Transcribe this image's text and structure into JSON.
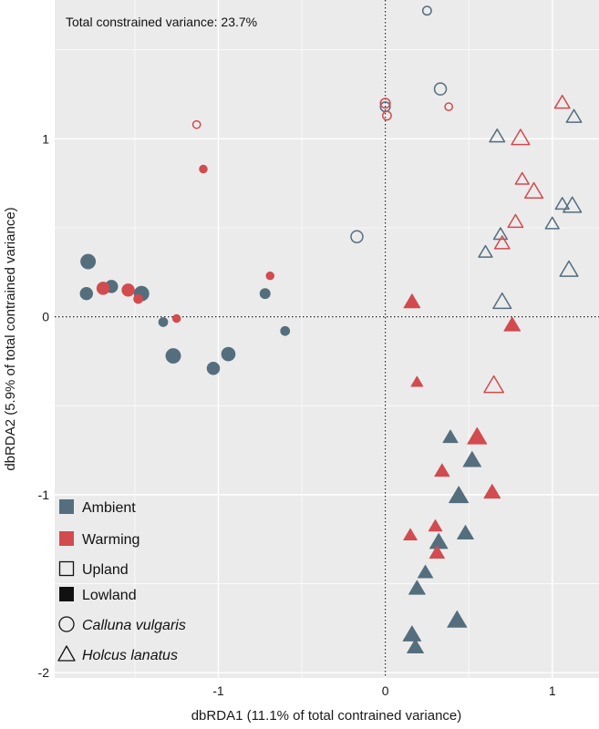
{
  "chart_data": {
    "type": "scatter",
    "title": "",
    "annotation": "Total constrained variance: 23.7%",
    "xlabel": "dbRDA1 (11.1% of total contrained variance)",
    "ylabel": "dbRDA2 (5.9% of total contrained variance)",
    "xlim": [
      -1.98,
      1.28
    ],
    "ylim": [
      -2.03,
      1.78
    ],
    "xticks": [
      -1,
      0,
      1
    ],
    "xtick_labels": [
      "-1",
      "0",
      "1"
    ],
    "yticks": [
      -2,
      -1,
      0,
      1
    ],
    "ytick_labels": [
      "-2",
      "-1",
      "0",
      "1"
    ],
    "grid": true,
    "reference_lines": {
      "x": 0,
      "y": 0,
      "style": "dotted"
    },
    "colors": {
      "Ambient": "#546e7e",
      "Warming": "#d14b4f",
      "panel": "#ebebeb",
      "grid": "#ffffff"
    },
    "legend": {
      "placement": "bottom-left",
      "items": [
        {
          "label": "Ambient",
          "symbol": "square-filled",
          "color": "#546e7e",
          "italic": false
        },
        {
          "label": "Warming",
          "symbol": "square-filled",
          "color": "#d14b4f",
          "italic": false
        },
        {
          "label": "Upland",
          "symbol": "square-open",
          "color": "#111111",
          "italic": false
        },
        {
          "label": "Lowland",
          "symbol": "square-filled",
          "color": "#111111",
          "italic": false
        },
        {
          "label": "Calluna vulgaris",
          "symbol": "circle-open",
          "color": "#111111",
          "italic": true
        },
        {
          "label": "Holcus lanatus",
          "symbol": "triangle-open",
          "color": "#111111",
          "italic": true
        }
      ]
    },
    "series": [
      {
        "treatment": "Ambient",
        "site": "Lowland",
        "species": "Calluna vulgaris",
        "filled": true,
        "shape": "circle",
        "points": [
          [
            -1.78,
            0.31,
            1.3
          ],
          [
            -1.79,
            0.13,
            1.1
          ],
          [
            -1.64,
            0.17,
            1.1
          ],
          [
            -1.46,
            0.13,
            1.3
          ],
          [
            -1.33,
            -0.03,
            0.8
          ],
          [
            -1.27,
            -0.22,
            1.3
          ],
          [
            -1.03,
            -0.29,
            1.1
          ],
          [
            -0.94,
            -0.21,
            1.2
          ],
          [
            -0.72,
            0.13,
            0.9
          ],
          [
            -0.6,
            -0.08,
            0.8
          ]
        ]
      },
      {
        "treatment": "Warming",
        "site": "Lowland",
        "species": "Calluna vulgaris",
        "filled": true,
        "shape": "circle",
        "points": [
          [
            -1.69,
            0.16,
            1.1
          ],
          [
            -1.54,
            0.15,
            1.1
          ],
          [
            -1.48,
            0.1,
            0.8
          ],
          [
            -1.25,
            -0.01,
            0.7
          ],
          [
            -1.09,
            0.83,
            0.7
          ],
          [
            -0.69,
            0.23,
            0.7
          ]
        ]
      },
      {
        "treatment": "Ambient",
        "site": "Upland",
        "species": "Calluna vulgaris",
        "filled": false,
        "shape": "circle",
        "points": [
          [
            -0.17,
            0.45,
            1.1
          ],
          [
            0.0,
            1.18,
            0.9
          ],
          [
            0.25,
            1.72,
            0.8
          ],
          [
            0.33,
            1.28,
            1.1
          ]
        ]
      },
      {
        "treatment": "Warming",
        "site": "Upland",
        "species": "Calluna vulgaris",
        "filled": false,
        "shape": "circle",
        "points": [
          [
            -1.13,
            1.08,
            0.7
          ],
          [
            0.0,
            1.2,
            0.9
          ],
          [
            0.01,
            1.13,
            0.8
          ],
          [
            0.38,
            1.18,
            0.7
          ]
        ]
      },
      {
        "treatment": "Ambient",
        "site": "Lowland",
        "species": "Holcus lanatus",
        "filled": true,
        "shape": "triangle",
        "points": [
          [
            0.39,
            -0.68,
            1.0
          ],
          [
            0.52,
            -0.81,
            1.2
          ],
          [
            0.44,
            -1.01,
            1.3
          ],
          [
            0.48,
            -1.22,
            1.1
          ],
          [
            0.32,
            -1.27,
            1.2
          ],
          [
            0.24,
            -1.44,
            1.0
          ],
          [
            0.19,
            -1.53,
            1.1
          ],
          [
            0.16,
            -1.79,
            1.2
          ],
          [
            0.18,
            -1.86,
            1.1
          ],
          [
            0.43,
            -1.71,
            1.3
          ]
        ]
      },
      {
        "treatment": "Warming",
        "site": "Lowland",
        "species": "Holcus lanatus",
        "filled": true,
        "shape": "triangle",
        "points": [
          [
            0.16,
            0.08,
            1.1
          ],
          [
            0.19,
            -0.37,
            0.8
          ],
          [
            0.76,
            -0.05,
            1.1
          ],
          [
            0.55,
            -0.68,
            1.3
          ],
          [
            0.34,
            -0.87,
            1.0
          ],
          [
            0.64,
            -0.99,
            1.1
          ],
          [
            0.3,
            -1.18,
            0.9
          ],
          [
            0.15,
            -1.23,
            0.9
          ],
          [
            0.31,
            -1.33,
            1.0
          ]
        ]
      },
      {
        "treatment": "Ambient",
        "site": "Upland",
        "species": "Holcus lanatus",
        "filled": false,
        "shape": "triangle",
        "points": [
          [
            0.67,
            1.01,
            1.0
          ],
          [
            0.69,
            0.46,
            0.9
          ],
          [
            0.6,
            0.36,
            0.9
          ],
          [
            0.7,
            0.08,
            1.2
          ],
          [
            1.0,
            0.52,
            0.9
          ],
          [
            1.06,
            0.63,
            0.9
          ],
          [
            1.12,
            0.62,
            1.2
          ],
          [
            1.1,
            0.26,
            1.2
          ],
          [
            1.13,
            1.12,
            1.0
          ]
        ]
      },
      {
        "treatment": "Warming",
        "site": "Upland",
        "species": "Holcus lanatus",
        "filled": false,
        "shape": "triangle",
        "points": [
          [
            0.81,
            1.0,
            1.2
          ],
          [
            1.06,
            1.2,
            1.0
          ],
          [
            0.82,
            0.77,
            0.9
          ],
          [
            0.89,
            0.7,
            1.2
          ],
          [
            0.78,
            0.53,
            1.0
          ],
          [
            0.7,
            0.41,
            1.0
          ],
          [
            0.65,
            -0.39,
            1.3
          ]
        ]
      }
    ]
  }
}
